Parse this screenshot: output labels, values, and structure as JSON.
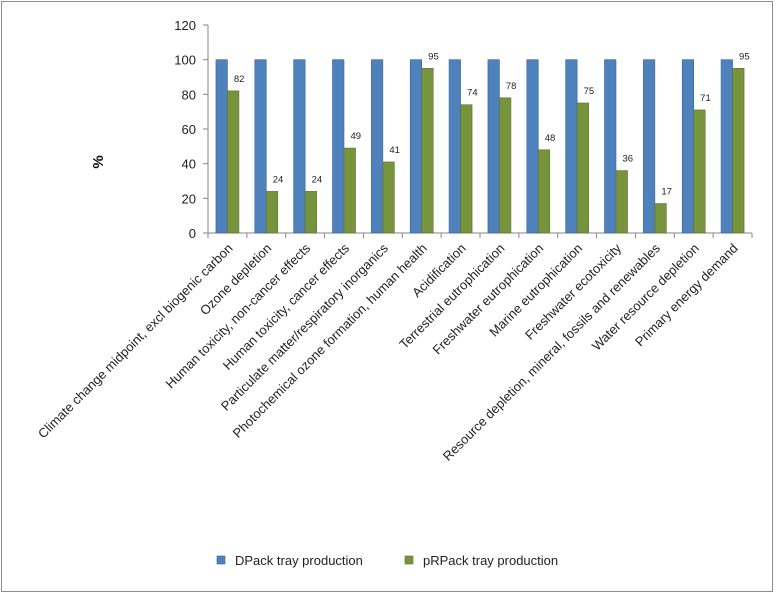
{
  "chart_data": {
    "type": "bar",
    "title": "",
    "xlabel": "",
    "ylabel": "%",
    "ylim": [
      0,
      120
    ],
    "yticks": [
      0,
      20,
      40,
      60,
      80,
      100,
      120
    ],
    "grid": false,
    "legend_position": "bottom",
    "categories": [
      "Climate change midpoint, excl biogenic carbon",
      "Ozone depletion",
      "Human toxicity, non-cancer effects",
      "Human toxicity, cancer effects",
      "Particulate matter/respiratory inorganics",
      "Photochemical ozone formation, human health",
      "Acidification",
      "Terrestrial eutrophication",
      "Freshwater eutrophication",
      "Marine eutrophication",
      "Freshwater ecotoxicity",
      "Resource depletion, mineral, fossils and renewables",
      "Water resource depletion",
      "Primary energy demand"
    ],
    "series": [
      {
        "name": "DPack tray production",
        "color": "#4F81BD",
        "values": [
          100,
          100,
          100,
          100,
          100,
          100,
          100,
          100,
          100,
          100,
          100,
          100,
          100,
          100
        ],
        "labels": [
          "",
          "",
          "",
          "",
          "",
          "",
          "",
          "",
          "",
          "",
          "",
          "",
          "",
          ""
        ]
      },
      {
        "name": "pRPack tray production",
        "color": "#77933C",
        "values": [
          82,
          24,
          24,
          49,
          41,
          95,
          74,
          78,
          48,
          75,
          36,
          17,
          71,
          95
        ],
        "labels": [
          "82",
          "24",
          "24",
          "49",
          "41",
          "95",
          "74",
          "78",
          "48",
          "75",
          "36",
          "17",
          "71",
          "95"
        ]
      }
    ]
  }
}
